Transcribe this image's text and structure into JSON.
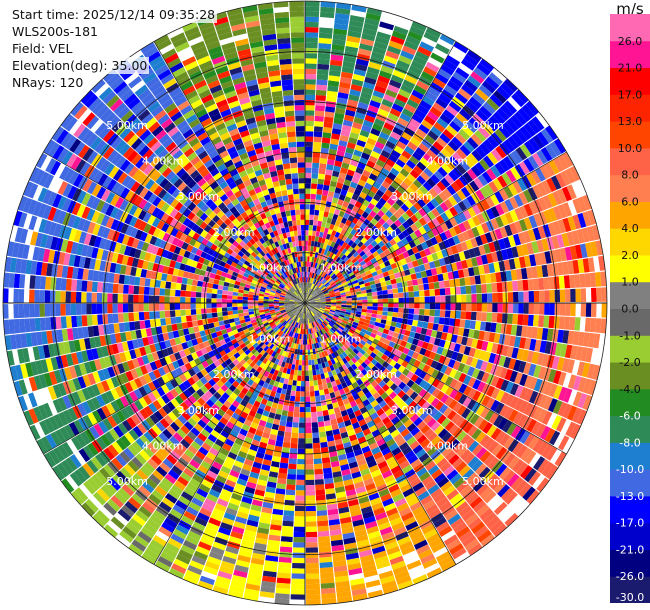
{
  "header": {
    "start_time": "Start time: 2025/12/14 09:35:28",
    "instrument": "WLS200s-181",
    "field": "Field: VEL",
    "elevation": "Elevation(deg): 35.00",
    "nrays": "NRays: 120"
  },
  "chart_data": {
    "type": "polar_ppi",
    "field": "VEL",
    "units": "m/s",
    "n_rays": 120,
    "max_range_km": 6.0,
    "range_rings_km": [
      1.0,
      2.0,
      3.0,
      4.0,
      5.0
    ],
    "ring_labels": [
      "1.00km",
      "2.00km",
      "3.00km",
      "4.00km",
      "5.00km"
    ],
    "colorbar": {
      "title": "m/s",
      "bounds": [
        -30.0,
        -26.0,
        -21.0,
        -17.0,
        -13.0,
        -10.0,
        -8.0,
        -6.0,
        -4.0,
        -2.0,
        -1.0,
        0.0,
        1.0,
        2.0,
        4.0,
        6.0,
        8.0,
        10.0,
        13.0,
        17.0,
        21.0,
        26.0,
        30.0
      ],
      "tick_labels": [
        "26.0",
        "21.0",
        "17.0",
        "13.0",
        "10.0",
        "8.0",
        "6.0",
        "4.0",
        "2.0",
        "1.0",
        "0.0",
        "-1.0",
        "-2.0",
        "-4.0",
        "-6.0",
        "-8.0",
        "-10.0",
        "-13.0",
        "-17.0",
        "-21.0",
        "-26.0",
        "-30.0"
      ],
      "colors": [
        "#1a1a6e",
        "#000080",
        "#0000cd",
        "#0000ff",
        "#4169e1",
        "#1e7fd0",
        "#2e8b57",
        "#228b22",
        "#6b8e23",
        "#9acd32",
        "#696969",
        "#808080",
        "#ffff00",
        "#ffd700",
        "#ffa500",
        "#ff7f50",
        "#ff6347",
        "#ff4500",
        "#ff2400",
        "#ff0000",
        "#ff1493",
        "#ff69b4"
      ]
    },
    "outer_ring_pattern": {
      "description_bins_deg": [
        [
          0,
          30,
          6
        ],
        [
          30,
          60,
          3
        ],
        [
          60,
          110,
          15
        ],
        [
          110,
          150,
          16
        ],
        [
          150,
          180,
          14
        ],
        [
          180,
          205,
          12
        ],
        [
          205,
          230,
          9
        ],
        [
          230,
          260,
          6
        ],
        [
          260,
          295,
          4
        ],
        [
          295,
          330,
          4
        ],
        [
          330,
          360,
          8
        ]
      ]
    }
  }
}
